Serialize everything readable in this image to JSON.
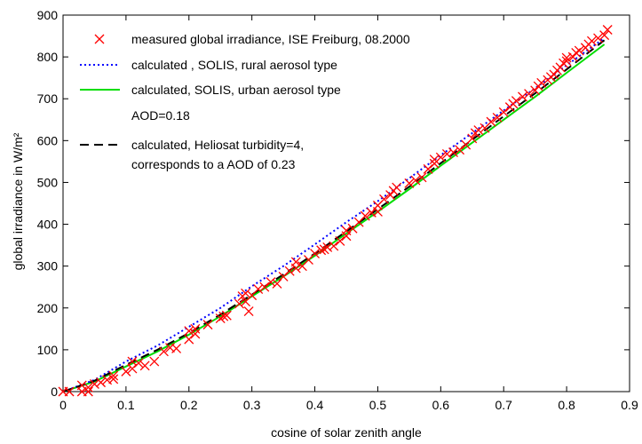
{
  "chart_data": {
    "type": "scatter",
    "xlabel": "cosine of solar zenith angle",
    "ylabel": "global irradiance in W/m²",
    "xlim": [
      0,
      0.9
    ],
    "ylim": [
      0,
      900
    ],
    "xticks": [
      "0",
      "0.1",
      "0.2",
      "0.3",
      "0.4",
      "0.5",
      "0.6",
      "0.7",
      "0.8",
      "0.9"
    ],
    "yticks": [
      "0",
      "100",
      "200",
      "300",
      "400",
      "500",
      "600",
      "700",
      "800",
      "900"
    ],
    "legend_position": "top-left",
    "grid": false,
    "series": [
      {
        "name": "measured global irradiance, ISE Freiburg, 08.2000",
        "kind": "markers",
        "color": "#ff0000",
        "points": [
          [
            0.0,
            0
          ],
          [
            0.01,
            0
          ],
          [
            0.03,
            0
          ],
          [
            0.03,
            15
          ],
          [
            0.04,
            0
          ],
          [
            0.04,
            10
          ],
          [
            0.05,
            18
          ],
          [
            0.06,
            22
          ],
          [
            0.07,
            28
          ],
          [
            0.08,
            30
          ],
          [
            0.08,
            38
          ],
          [
            0.1,
            48
          ],
          [
            0.11,
            55
          ],
          [
            0.11,
            72
          ],
          [
            0.12,
            68
          ],
          [
            0.13,
            62
          ],
          [
            0.145,
            72
          ],
          [
            0.16,
            96
          ],
          [
            0.17,
            105
          ],
          [
            0.18,
            103
          ],
          [
            0.2,
            125
          ],
          [
            0.2,
            145
          ],
          [
            0.21,
            138
          ],
          [
            0.21,
            150
          ],
          [
            0.23,
            160
          ],
          [
            0.25,
            175
          ],
          [
            0.255,
            180
          ],
          [
            0.26,
            182
          ],
          [
            0.28,
            210
          ],
          [
            0.285,
            228
          ],
          [
            0.29,
            215
          ],
          [
            0.29,
            235
          ],
          [
            0.295,
            192
          ],
          [
            0.3,
            230
          ],
          [
            0.31,
            245
          ],
          [
            0.32,
            250
          ],
          [
            0.33,
            262
          ],
          [
            0.34,
            258
          ],
          [
            0.35,
            275
          ],
          [
            0.36,
            288
          ],
          [
            0.37,
            295
          ],
          [
            0.37,
            310
          ],
          [
            0.38,
            300
          ],
          [
            0.39,
            315
          ],
          [
            0.4,
            330
          ],
          [
            0.41,
            338
          ],
          [
            0.415,
            340
          ],
          [
            0.42,
            345
          ],
          [
            0.43,
            348
          ],
          [
            0.44,
            360
          ],
          [
            0.45,
            372
          ],
          [
            0.45,
            385
          ],
          [
            0.46,
            390
          ],
          [
            0.47,
            405
          ],
          [
            0.48,
            420
          ],
          [
            0.49,
            428
          ],
          [
            0.5,
            430
          ],
          [
            0.5,
            445
          ],
          [
            0.51,
            460
          ],
          [
            0.52,
            470
          ],
          [
            0.525,
            480
          ],
          [
            0.53,
            488
          ],
          [
            0.55,
            498
          ],
          [
            0.56,
            505
          ],
          [
            0.57,
            512
          ],
          [
            0.58,
            532
          ],
          [
            0.59,
            545
          ],
          [
            0.59,
            555
          ],
          [
            0.6,
            560
          ],
          [
            0.61,
            568
          ],
          [
            0.62,
            572
          ],
          [
            0.63,
            578
          ],
          [
            0.64,
            590
          ],
          [
            0.65,
            605
          ],
          [
            0.655,
            618
          ],
          [
            0.66,
            625
          ],
          [
            0.67,
            630
          ],
          [
            0.68,
            645
          ],
          [
            0.69,
            655
          ],
          [
            0.7,
            668
          ],
          [
            0.71,
            680
          ],
          [
            0.715,
            688
          ],
          [
            0.72,
            695
          ],
          [
            0.73,
            705
          ],
          [
            0.74,
            712
          ],
          [
            0.75,
            720
          ],
          [
            0.755,
            730
          ],
          [
            0.76,
            738
          ],
          [
            0.77,
            745
          ],
          [
            0.775,
            752
          ],
          [
            0.78,
            758
          ],
          [
            0.785,
            768
          ],
          [
            0.79,
            775
          ],
          [
            0.795,
            785
          ],
          [
            0.8,
            790
          ],
          [
            0.8,
            798
          ],
          [
            0.81,
            800
          ],
          [
            0.815,
            810
          ],
          [
            0.82,
            815
          ],
          [
            0.83,
            822
          ],
          [
            0.835,
            830
          ],
          [
            0.84,
            838
          ],
          [
            0.85,
            845
          ],
          [
            0.86,
            852
          ],
          [
            0.865,
            865
          ]
        ]
      },
      {
        "name": "calculated , SOLIS, rural aerosol type",
        "kind": "dotted",
        "color": "#0000ff",
        "points": [
          [
            0,
            0
          ],
          [
            0.05,
            28
          ],
          [
            0.1,
            72
          ],
          [
            0.15,
            110
          ],
          [
            0.2,
            155
          ],
          [
            0.25,
            200
          ],
          [
            0.3,
            252
          ],
          [
            0.35,
            300
          ],
          [
            0.4,
            352
          ],
          [
            0.45,
            405
          ],
          [
            0.5,
            455
          ],
          [
            0.55,
            510
          ],
          [
            0.6,
            565
          ],
          [
            0.65,
            618
          ],
          [
            0.7,
            672
          ],
          [
            0.75,
            725
          ],
          [
            0.8,
            780
          ],
          [
            0.86,
            845
          ]
        ]
      },
      {
        "name": "calculated, SOLIS, urban aerosol type",
        "kind": "solid",
        "color": "#00dd00",
        "points": [
          [
            0,
            0
          ],
          [
            0.05,
            24
          ],
          [
            0.1,
            60
          ],
          [
            0.15,
            96
          ],
          [
            0.2,
            136
          ],
          [
            0.25,
            180
          ],
          [
            0.3,
            228
          ],
          [
            0.35,
            275
          ],
          [
            0.4,
            325
          ],
          [
            0.45,
            378
          ],
          [
            0.5,
            430
          ],
          [
            0.55,
            484
          ],
          [
            0.6,
            540
          ],
          [
            0.65,
            595
          ],
          [
            0.7,
            650
          ],
          [
            0.75,
            705
          ],
          [
            0.8,
            762
          ],
          [
            0.86,
            830
          ]
        ]
      },
      {
        "name": "calculated, Heliosat turbidity=4,",
        "name_line2": "corresponds to a AOD of 0.23",
        "kind": "dashed",
        "color": "#000000",
        "points": [
          [
            0,
            0
          ],
          [
            0.05,
            26
          ],
          [
            0.1,
            64
          ],
          [
            0.15,
            100
          ],
          [
            0.2,
            140
          ],
          [
            0.25,
            184
          ],
          [
            0.3,
            232
          ],
          [
            0.35,
            280
          ],
          [
            0.4,
            330
          ],
          [
            0.45,
            383
          ],
          [
            0.5,
            436
          ],
          [
            0.55,
            490
          ],
          [
            0.6,
            546
          ],
          [
            0.65,
            602
          ],
          [
            0.7,
            658
          ],
          [
            0.75,
            713
          ],
          [
            0.8,
            770
          ],
          [
            0.86,
            840
          ]
        ]
      }
    ],
    "annotation": "AOD=0.18"
  }
}
